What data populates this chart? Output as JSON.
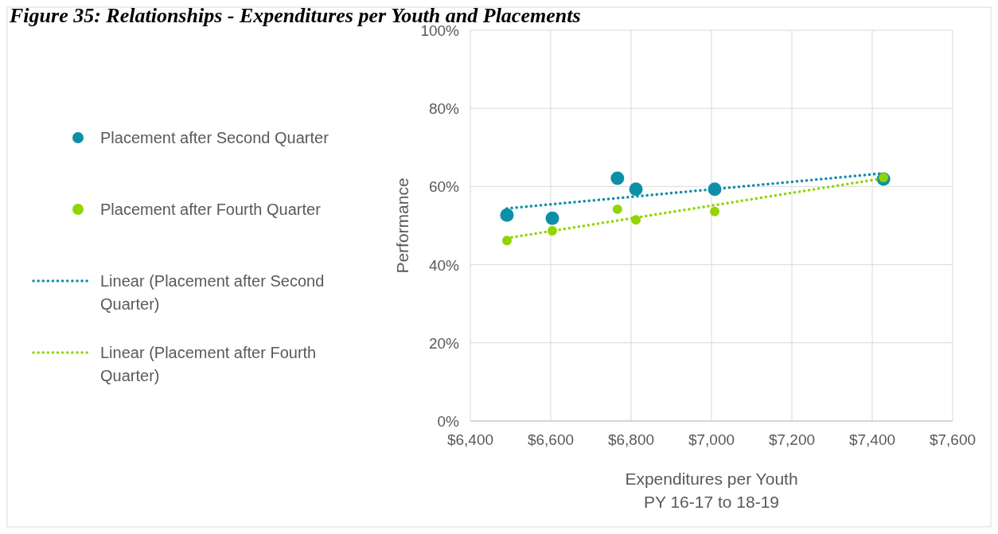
{
  "chart_data": {
    "type": "scatter",
    "title": "Figure 35: Relationships - Expenditures per Youth and Placements",
    "xlabel": "Expenditures per Youth\nPY 16-17 to 18-19",
    "ylabel": "Performance",
    "xlim": [
      6400,
      7600
    ],
    "xticks": [
      {
        "value": 6400,
        "label": "$6,400"
      },
      {
        "value": 6600,
        "label": "$6,600"
      },
      {
        "value": 6800,
        "label": "$6,800"
      },
      {
        "value": 7000,
        "label": "$7,000"
      },
      {
        "value": 7200,
        "label": "$7,200"
      },
      {
        "value": 7400,
        "label": "$7,400"
      },
      {
        "value": 7600,
        "label": "$7,600"
      }
    ],
    "ylim": [
      0,
      100
    ],
    "yticks": [
      {
        "value": 0,
        "label": "0%"
      },
      {
        "value": 20,
        "label": "20%"
      },
      {
        "value": 40,
        "label": "40%"
      },
      {
        "value": 60,
        "label": "60%"
      },
      {
        "value": 80,
        "label": "80%"
      },
      {
        "value": 100,
        "label": "100%"
      }
    ],
    "grid": true,
    "legend": "left",
    "marker": "circle",
    "series": [
      {
        "name": "Placement after Second Quarter",
        "color": "#0e8fa9",
        "x": [
          6491,
          6604,
          6766,
          6812,
          7008,
          7428
        ],
        "values": [
          52.7,
          51.9,
          62.1,
          59.3,
          59.3,
          61.9
        ]
      },
      {
        "name": "Placement after Fourth Quarter",
        "color": "#92d400",
        "x": [
          6491,
          6604,
          6766,
          6812,
          7008,
          7428
        ],
        "values": [
          46.2,
          48.7,
          54.2,
          51.5,
          53.6,
          62.3
        ]
      },
      {
        "name": "Linear (Placement after Second Quarter)",
        "type": "line",
        "marker": "none",
        "line_style": "dotted",
        "color": "#0e8fa9",
        "x": [
          6491,
          7428
        ],
        "values": [
          54.4,
          63.4
        ]
      },
      {
        "name": "Linear (Placement after Fourth Quarter)",
        "type": "line",
        "marker": "none",
        "line_style": "dotted",
        "color": "#92d400",
        "x": [
          6491,
          7428
        ],
        "values": [
          46.8,
          62.1
        ]
      }
    ]
  }
}
